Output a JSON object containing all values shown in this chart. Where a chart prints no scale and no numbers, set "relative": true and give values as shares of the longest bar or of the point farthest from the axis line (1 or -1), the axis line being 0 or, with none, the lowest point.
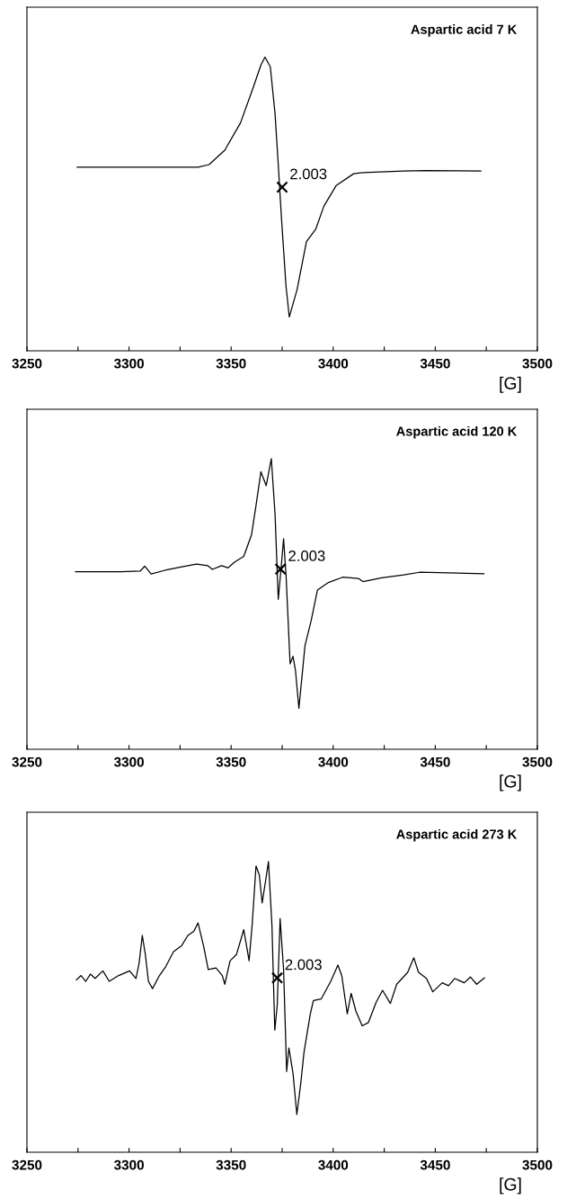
{
  "chart_data": [
    {
      "type": "line",
      "title": "Aspartic acid 7 K",
      "xlabel": "[G]",
      "relative": true,
      "grid": false,
      "legend": false,
      "xlim": [
        3250,
        3500
      ],
      "xticks": [
        3250,
        {
          "value": 3275,
          "label": null
        },
        3300,
        {
          "value": 3325,
          "label": null
        },
        3350,
        {
          "value": 3375,
          "label": null
        },
        3400,
        {
          "value": 3425,
          "label": null
        },
        3450,
        {
          "value": 3475,
          "label": null
        },
        3500
      ],
      "series": [
        {
          "color": "#000000",
          "x": [
            3274.6,
            3296.2,
            3333.8,
            3339.2,
            3346.9,
            3354.6,
            3360.8,
            3364.6,
            3366.6,
            3369.2,
            3371.5,
            3373.1,
            3374.6,
            3376.9,
            3378.5,
            3382.3,
            3386.9,
            3391.5,
            3395.4,
            3401.5,
            3410.0,
            3414.6,
            3434.6,
            3445.4,
            3472.3
          ],
          "values": [
            0.625,
            0.625,
            0.625,
            0.634,
            0.683,
            0.776,
            0.896,
            0.973,
            1.0,
            0.967,
            0.809,
            0.634,
            0.459,
            0.219,
            0.115,
            0.208,
            0.372,
            0.415,
            0.492,
            0.563,
            0.603,
            0.607,
            0.612,
            0.614,
            0.612
          ]
        }
      ],
      "annotations": [
        {
          "text": "2.003",
          "x": 3375.0,
          "y": 0.557
        }
      ]
    },
    {
      "type": "line",
      "title": "Aspartic acid 120 K",
      "xlabel": "[G]",
      "relative": true,
      "grid": false,
      "legend": false,
      "xlim": [
        3250,
        3500
      ],
      "xticks": [
        3250,
        {
          "value": 3275,
          "label": null
        },
        3300,
        {
          "value": 3325,
          "label": null
        },
        3350,
        {
          "value": 3375,
          "label": null
        },
        3400,
        {
          "value": 3425,
          "label": null
        },
        3450,
        {
          "value": 3475,
          "label": null
        },
        3500
      ],
      "series": [
        {
          "color": "#000000",
          "x": [
            3273.8,
            3296.2,
            3305.4,
            3307.7,
            3310.8,
            3317.7,
            3325.4,
            3333.1,
            3338.5,
            3340.8,
            3345.4,
            3348.5,
            3351.5,
            3356.2,
            3360.0,
            3362.3,
            3364.6,
            3367.2,
            3369.7,
            3371.5,
            3373.1,
            3374.6,
            3375.7,
            3376.9,
            3378.9,
            3380.3,
            3381.5,
            3383.2,
            3386.2,
            3389.2,
            3392.3,
            3397.7,
            3404.6,
            3412.3,
            3414.6,
            3423.8,
            3434.6,
            3442.3,
            3473.8
          ],
          "values": [
            0.611,
            0.611,
            0.613,
            0.63,
            0.603,
            0.616,
            0.627,
            0.637,
            0.632,
            0.619,
            0.632,
            0.624,
            0.643,
            0.664,
            0.738,
            0.844,
            0.955,
            0.907,
            1.0,
            0.812,
            0.516,
            0.632,
            0.725,
            0.6,
            0.294,
            0.32,
            0.273,
            0.141,
            0.357,
            0.442,
            0.548,
            0.574,
            0.592,
            0.588,
            0.577,
            0.59,
            0.6,
            0.609,
            0.604
          ]
        }
      ],
      "annotations": [
        {
          "text": "2.003",
          "x": 3374.2,
          "y": 0.62
        }
      ]
    },
    {
      "type": "line",
      "title": "Aspartic acid 273 K",
      "xlabel": "[G]",
      "relative": true,
      "grid": false,
      "legend": false,
      "xlim": [
        3250,
        3500
      ],
      "xticks": [
        3250,
        {
          "value": 3275,
          "label": null
        },
        3300,
        {
          "value": 3325,
          "label": null
        },
        3350,
        {
          "value": 3375,
          "label": null
        },
        3400,
        {
          "value": 3425,
          "label": null
        },
        3450,
        {
          "value": 3475,
          "label": null
        },
        3500
      ],
      "series": [
        {
          "color": "#000000",
          "x": [
            3274.2,
            3276.5,
            3278.8,
            3281.1,
            3283.4,
            3287.2,
            3290.3,
            3294.9,
            3300.3,
            3303.4,
            3304.9,
            3306.5,
            3308.0,
            3309.5,
            3311.5,
            3314.9,
            3318.0,
            3321.8,
            3325.7,
            3328.8,
            3331.8,
            3333.8,
            3336.5,
            3338.8,
            3342.6,
            3345.7,
            3346.9,
            3349.5,
            3352.6,
            3356.2,
            3358.8,
            3360.3,
            3362.2,
            3363.8,
            3365.2,
            3366.9,
            3368.3,
            3370.0,
            3371.4,
            3372.6,
            3374.0,
            3375.7,
            3377.2,
            3378.3,
            3380.3,
            3382.2,
            3384.2,
            3385.7,
            3388.8,
            3390.3,
            3394.1,
            3398.8,
            3402.3,
            3404.2,
            3406.9,
            3408.8,
            3411.1,
            3414.2,
            3417.2,
            3421.1,
            3424.2,
            3428.0,
            3431.1,
            3436.5,
            3439.5,
            3441.8,
            3445.7,
            3448.8,
            3453.4,
            3456.5,
            3459.5,
            3464.2,
            3467.2,
            3470.3,
            3474.1
          ],
          "values": [
            0.593,
            0.608,
            0.588,
            0.613,
            0.598,
            0.624,
            0.588,
            0.608,
            0.624,
            0.598,
            0.649,
            0.746,
            0.68,
            0.588,
            0.563,
            0.608,
            0.639,
            0.69,
            0.71,
            0.746,
            0.761,
            0.789,
            0.71,
            0.629,
            0.634,
            0.608,
            0.578,
            0.659,
            0.68,
            0.766,
            0.659,
            0.781,
            0.985,
            0.954,
            0.858,
            0.934,
            1.0,
            0.781,
            0.42,
            0.507,
            0.804,
            0.629,
            0.278,
            0.359,
            0.273,
            0.13,
            0.242,
            0.344,
            0.476,
            0.522,
            0.527,
            0.588,
            0.644,
            0.608,
            0.476,
            0.547,
            0.486,
            0.435,
            0.446,
            0.517,
            0.557,
            0.512,
            0.578,
            0.619,
            0.669,
            0.619,
            0.598,
            0.552,
            0.583,
            0.573,
            0.598,
            0.583,
            0.603,
            0.578,
            0.6
          ]
        }
      ],
      "annotations": [
        {
          "text": "2.003",
          "x": 3372.6,
          "y": 0.6
        }
      ]
    }
  ]
}
